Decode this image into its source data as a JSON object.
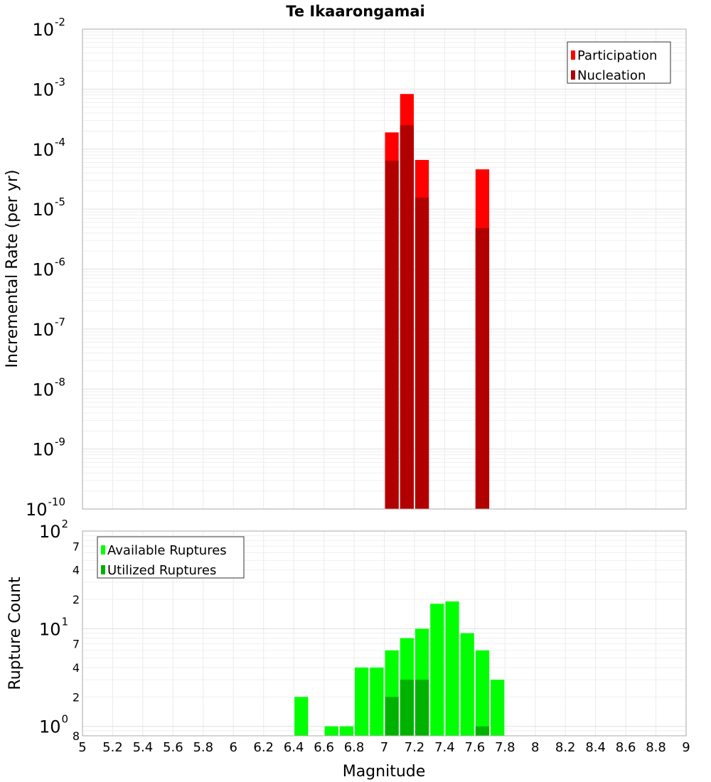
{
  "chart_data": [
    {
      "type": "bar",
      "title": "Te Ikaarongamai",
      "xlabel": "Magnitude",
      "ylabel": "Incremental Rate (per yr)",
      "yscale": "log",
      "ylim": [
        1e-10,
        0.01
      ],
      "xlim": [
        5,
        9
      ],
      "grid": true,
      "legend_position": "top-right",
      "bin_width": 0.1,
      "x": [
        7.05,
        7.15,
        7.25,
        7.65
      ],
      "series": [
        {
          "name": "Participation",
          "color": "#ff0000",
          "values": [
            0.00019,
            0.00083,
            6.6e-05,
            4.6e-05
          ]
        },
        {
          "name": "Nucleation",
          "color": "#b20000",
          "values": [
            6.4e-05,
            0.00025,
            1.55e-05,
            4.8e-06
          ]
        }
      ],
      "ytick_labels": [
        {
          "base": "10",
          "exp": "-2",
          "value": 0.01
        },
        {
          "base": "10",
          "exp": "-3",
          "value": 0.001
        },
        {
          "base": "10",
          "exp": "-4",
          "value": 0.0001
        },
        {
          "base": "10",
          "exp": "-5",
          "value": 1e-05
        },
        {
          "base": "10",
          "exp": "-6",
          "value": 1e-06
        },
        {
          "base": "10",
          "exp": "-7",
          "value": 1e-07
        },
        {
          "base": "10",
          "exp": "-8",
          "value": 1e-08
        },
        {
          "base": "10",
          "exp": "-9",
          "value": 1e-09
        },
        {
          "base": "10",
          "exp": "-10",
          "value": 1e-10
        }
      ]
    },
    {
      "type": "bar",
      "xlabel": "Magnitude",
      "ylabel": "Rupture Count",
      "yscale": "log",
      "ylim": [
        0.8,
        100
      ],
      "xlim": [
        5,
        9
      ],
      "grid": true,
      "legend_position": "top-left",
      "bin_width": 0.1,
      "x": [
        6.45,
        6.65,
        6.75,
        6.85,
        6.95,
        7.05,
        7.15,
        7.25,
        7.35,
        7.45,
        7.55,
        7.65,
        7.75
      ],
      "series": [
        {
          "name": "Available Ruptures",
          "color": "#00ff00",
          "values": [
            2,
            1,
            1,
            4,
            4,
            6,
            8,
            10,
            18,
            19,
            9,
            6,
            3
          ]
        },
        {
          "name": "Utilized Ruptures",
          "color": "#00b200",
          "values": [
            0,
            0,
            0,
            0,
            0,
            2,
            3,
            3,
            0,
            0,
            0,
            1,
            0
          ]
        }
      ],
      "ytick_labels": [
        {
          "base": "10",
          "exp": "2",
          "value": 100
        },
        {
          "base": "",
          "exp": "",
          "label": "7",
          "value": 70
        },
        {
          "base": "",
          "exp": "",
          "label": "4",
          "value": 40
        },
        {
          "base": "",
          "exp": "",
          "label": "2",
          "value": 20
        },
        {
          "base": "10",
          "exp": "1",
          "value": 10
        },
        {
          "base": "",
          "exp": "",
          "label": "7",
          "value": 7
        },
        {
          "base": "",
          "exp": "",
          "label": "4",
          "value": 4
        },
        {
          "base": "",
          "exp": "",
          "label": "2",
          "value": 2
        },
        {
          "base": "10",
          "exp": "0",
          "value": 1
        },
        {
          "base": "",
          "exp": "",
          "label": "8",
          "value": 0.8
        }
      ],
      "xtick_labels": [
        "5",
        "5.2",
        "5.4",
        "5.6",
        "5.8",
        "6",
        "6.2",
        "6.4",
        "6.6",
        "6.8",
        "7",
        "7.2",
        "7.4",
        "7.6",
        "7.8",
        "8",
        "8.2",
        "8.4",
        "8.6",
        "8.8",
        "9"
      ]
    }
  ]
}
